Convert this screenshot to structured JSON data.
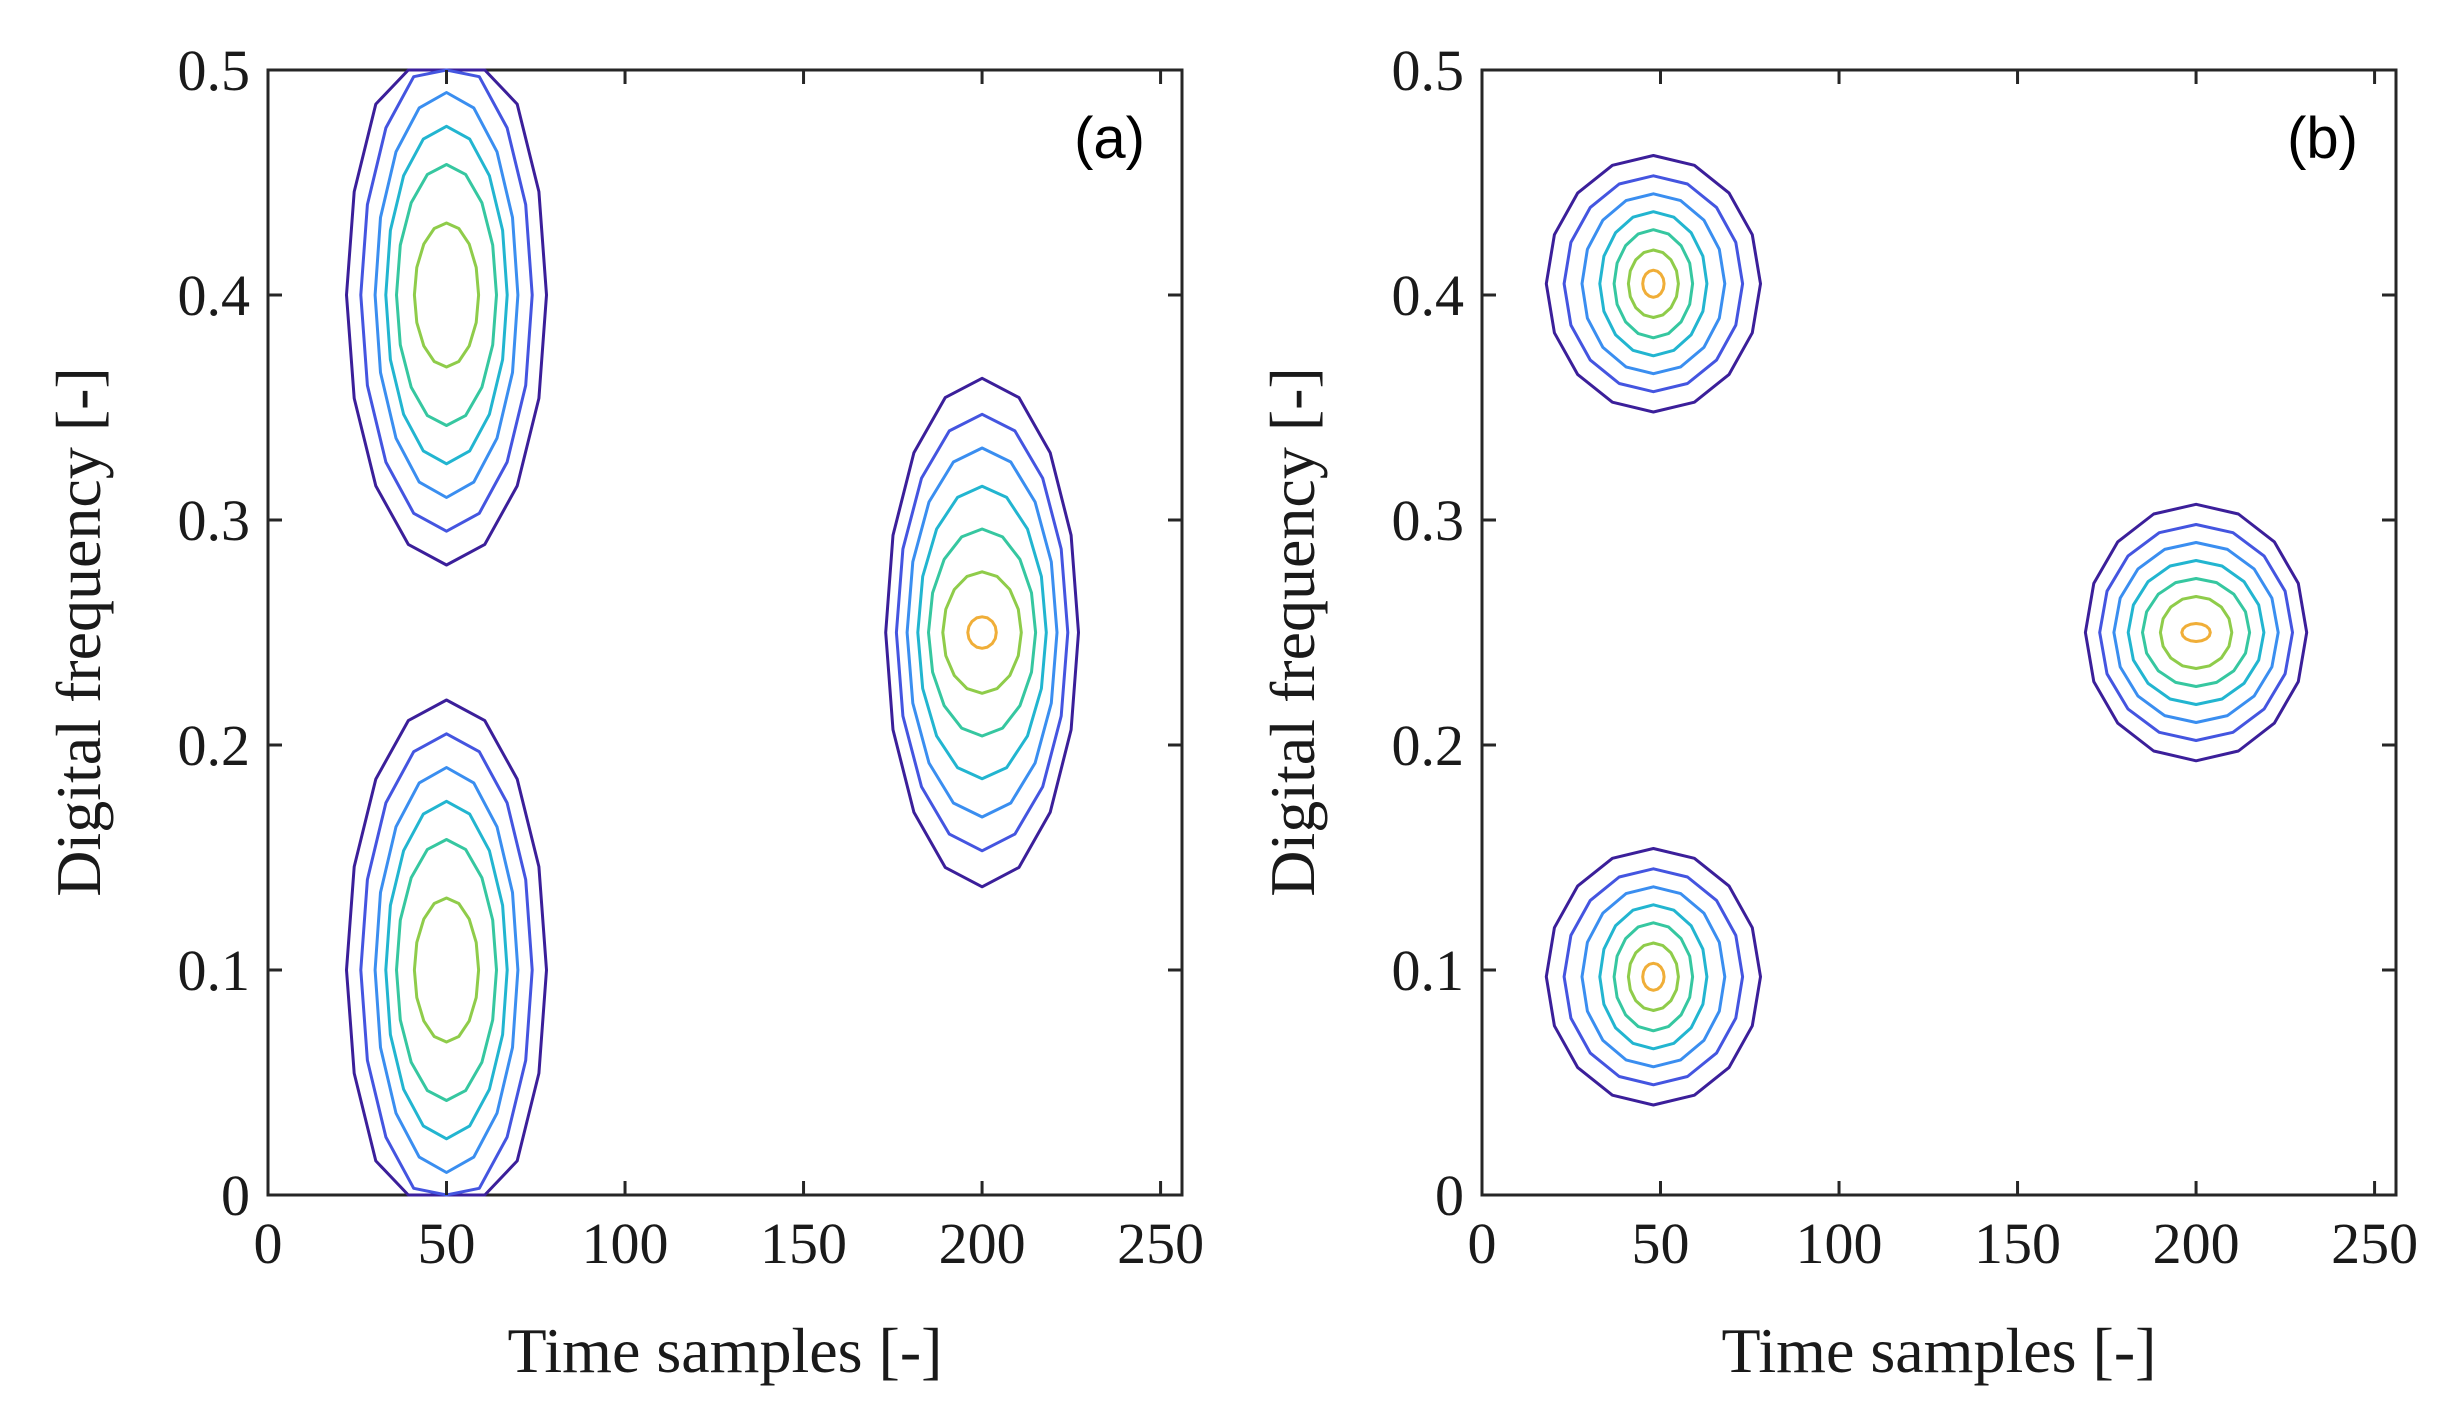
{
  "chart_data": [
    {
      "type": "contour",
      "panel_label": "(a)",
      "xlabel": "Time samples [-]",
      "ylabel": "Digital frequency [-]",
      "xlim": [
        0,
        256
      ],
      "ylim": [
        0,
        0.5
      ],
      "xticks": [
        0,
        50,
        100,
        150,
        200,
        250
      ],
      "xtick_labels": [
        "0",
        "50",
        "100",
        "150",
        "200",
        "250"
      ],
      "yticks": [
        0,
        0.1,
        0.2,
        0.3,
        0.4,
        0.5
      ],
      "ytick_labels": [
        "0",
        "0.1",
        "0.2",
        "0.3",
        "0.4",
        "0.5"
      ],
      "blobs": [
        {
          "t": 50,
          "f": 0.4,
          "semi_t": [
            28,
            24,
            20,
            17,
            14,
            9
          ],
          "semi_f": [
            0.12,
            0.105,
            0.09,
            0.075,
            0.058,
            0.032
          ],
          "clip": true
        },
        {
          "t": 50,
          "f": 0.1,
          "semi_t": [
            28,
            24,
            20,
            17,
            14,
            9
          ],
          "semi_f": [
            0.12,
            0.105,
            0.09,
            0.075,
            0.058,
            0.032
          ],
          "clip": true
        },
        {
          "t": 200,
          "f": 0.25,
          "semi_t": [
            27,
            24,
            21,
            18,
            15,
            11,
            4
          ],
          "semi_f": [
            0.113,
            0.097,
            0.082,
            0.065,
            0.046,
            0.027,
            0.007
          ],
          "clip": false
        }
      ]
    },
    {
      "type": "contour",
      "panel_label": "(b)",
      "xlabel": "Time samples [-]",
      "ylabel": "Digital frequency [-]",
      "xlim": [
        0,
        256
      ],
      "ylim": [
        0,
        0.5
      ],
      "xticks": [
        0,
        50,
        100,
        150,
        200,
        250
      ],
      "xtick_labels": [
        "0",
        "50",
        "100",
        "150",
        "200",
        "250"
      ],
      "yticks": [
        0,
        0.1,
        0.2,
        0.3,
        0.4,
        0.5
      ],
      "ytick_labels": [
        "0",
        "0.1",
        "0.2",
        "0.3",
        "0.4",
        "0.5"
      ],
      "blobs": [
        {
          "t": 48,
          "f": 0.405,
          "semi_t": [
            30,
            25,
            20,
            15,
            11,
            7,
            3
          ],
          "semi_f": [
            0.057,
            0.048,
            0.04,
            0.032,
            0.024,
            0.015,
            0.006
          ],
          "clip": false
        },
        {
          "t": 48,
          "f": 0.097,
          "semi_t": [
            30,
            25,
            20,
            15,
            11,
            7,
            3
          ],
          "semi_f": [
            0.057,
            0.048,
            0.04,
            0.032,
            0.024,
            0.015,
            0.006
          ],
          "clip": false
        },
        {
          "t": 200,
          "f": 0.25,
          "semi_t": [
            31,
            27,
            23,
            19,
            15,
            10,
            4
          ],
          "semi_f": [
            0.057,
            0.048,
            0.04,
            0.032,
            0.024,
            0.016,
            0.004
          ],
          "clip": false
        }
      ]
    }
  ],
  "colors": {
    "levels": [
      "#3b1f9a",
      "#4455e0",
      "#3a8ef0",
      "#22b5d0",
      "#36c7a0",
      "#8fcc4a",
      "#f0ae38",
      "#f8f035"
    ]
  }
}
